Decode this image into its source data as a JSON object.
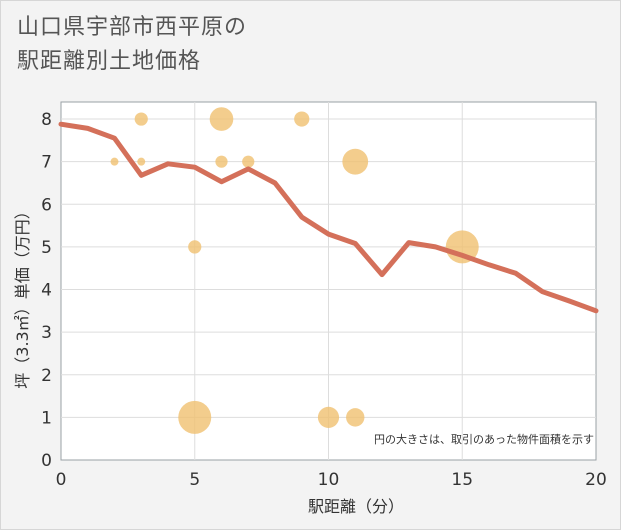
{
  "title_lines": [
    "山口県宇部市西平原の",
    "駅距離別土地価格"
  ],
  "chart_data": {
    "type": "scatter+line",
    "xlabel": "駅距離（分）",
    "ylabel": "坪（3.3㎡）単価（万円）",
    "xlim": [
      0,
      20
    ],
    "ylim": [
      0,
      8.4
    ],
    "x_ticks": [
      0,
      5,
      10,
      15,
      20
    ],
    "y_ticks": [
      0,
      1,
      2,
      3,
      4,
      5,
      6,
      7,
      8
    ],
    "annotation": "円の大きさは、取引のあった物件面積を示す",
    "colors": {
      "line": "#d4705a",
      "bubble": "#f0c070",
      "plot_bg": "#ffffff",
      "grid": "#dddddd"
    },
    "line_series": {
      "x": [
        0,
        1,
        2,
        3,
        4,
        5,
        6,
        7,
        8,
        9,
        10,
        11,
        12,
        13,
        14,
        15,
        16,
        17,
        18,
        19,
        20
      ],
      "y": [
        7.88,
        7.78,
        7.55,
        6.68,
        6.95,
        6.87,
        6.53,
        6.83,
        6.5,
        5.7,
        5.3,
        5.08,
        4.35,
        5.1,
        5.0,
        4.8,
        4.58,
        4.38,
        3.95,
        3.73,
        3.5
      ]
    },
    "bubbles": [
      {
        "x": 2,
        "y": 7,
        "size": 1
      },
      {
        "x": 3,
        "y": 8,
        "size": 3
      },
      {
        "x": 3,
        "y": 7,
        "size": 1
      },
      {
        "x": 5,
        "y": 5,
        "size": 3
      },
      {
        "x": 5,
        "y": 1,
        "size": 20
      },
      {
        "x": 6,
        "y": 8,
        "size": 10
      },
      {
        "x": 6,
        "y": 7,
        "size": 2.5
      },
      {
        "x": 7,
        "y": 7,
        "size": 2.5
      },
      {
        "x": 9,
        "y": 8,
        "size": 4
      },
      {
        "x": 10,
        "y": 1,
        "size": 8
      },
      {
        "x": 11,
        "y": 1,
        "size": 6
      },
      {
        "x": 11,
        "y": 7,
        "size": 12
      },
      {
        "x": 15,
        "y": 5,
        "size": 20
      }
    ]
  }
}
